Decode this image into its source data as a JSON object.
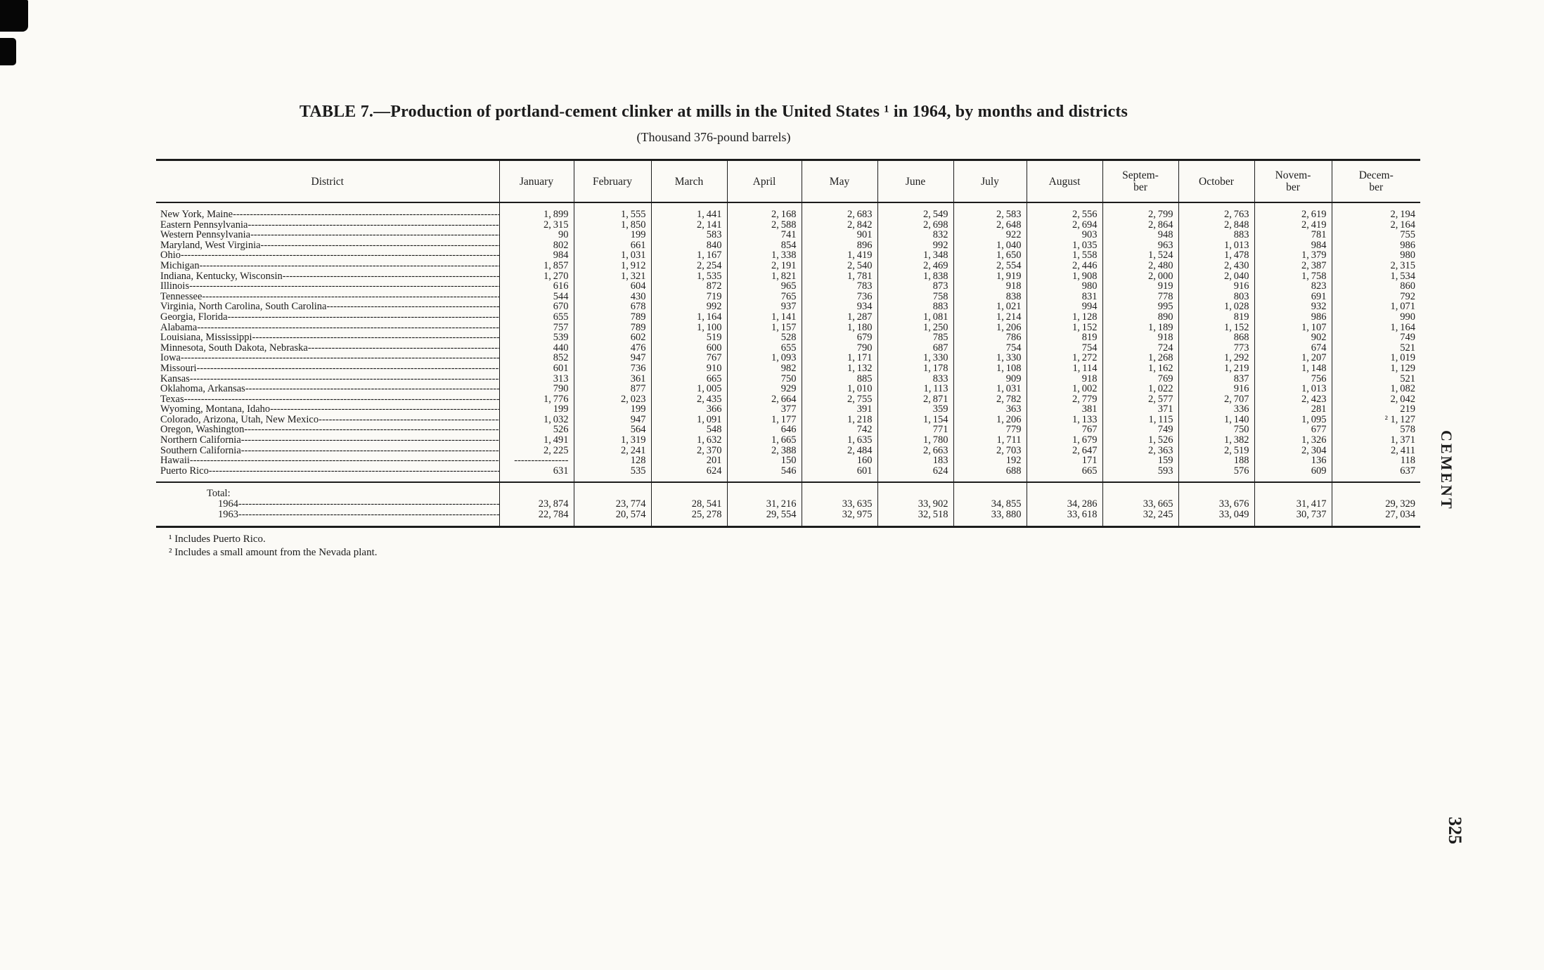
{
  "colors": {
    "paper": "#fbfaf6",
    "ink": "#1c1c1c"
  },
  "page": {
    "title": "TABLE 7.—Production of portland-cement clinker at mills in the United States ¹ in 1964, by months and districts",
    "subtitle": "(Thousand 376-pound barrels)",
    "side_label": "CEMENT",
    "page_number": "325",
    "footnotes": [
      "¹ Includes Puerto Rico.",
      "² Includes a small amount from the Nevada plant."
    ]
  },
  "table": {
    "district_header": "District",
    "month_headers": [
      "January",
      "February",
      "March",
      "April",
      "May",
      "June",
      "July",
      "August",
      "Septem-\nber",
      "October",
      "Novem-\nber",
      "Decem-\nber"
    ],
    "rows": [
      {
        "district": "New York, Maine",
        "values": [
          "1,899",
          "1,555",
          "1,441",
          "2,168",
          "2,683",
          "2,549",
          "2,583",
          "2,556",
          "2,799",
          "2,763",
          "2,619",
          "2,194"
        ]
      },
      {
        "district": "Eastern Pennsylvania",
        "values": [
          "2,315",
          "1,850",
          "2,141",
          "2,588",
          "2,842",
          "2,698",
          "2,648",
          "2,694",
          "2,864",
          "2,848",
          "2,419",
          "2,164"
        ]
      },
      {
        "district": "Western Pennsylvania",
        "values": [
          "90",
          "199",
          "583",
          "741",
          "901",
          "832",
          "922",
          "903",
          "948",
          "883",
          "781",
          "755"
        ]
      },
      {
        "district": "Maryland, West Virginia",
        "values": [
          "802",
          "661",
          "840",
          "854",
          "896",
          "992",
          "1,040",
          "1,035",
          "963",
          "1,013",
          "984",
          "986"
        ]
      },
      {
        "district": "Ohio",
        "values": [
          "984",
          "1,031",
          "1,167",
          "1,338",
          "1,419",
          "1,348",
          "1,650",
          "1,558",
          "1,524",
          "1,478",
          "1,379",
          "980"
        ]
      },
      {
        "district": "Michigan",
        "values": [
          "1,857",
          "1,912",
          "2,254",
          "2,191",
          "2,540",
          "2,469",
          "2,554",
          "2,446",
          "2,480",
          "2,430",
          "2,387",
          "2,315"
        ]
      },
      {
        "district": "Indiana, Kentucky, Wisconsin",
        "values": [
          "1,270",
          "1,321",
          "1,535",
          "1,821",
          "1,781",
          "1,838",
          "1,919",
          "1,908",
          "2,000",
          "2,040",
          "1,758",
          "1,534"
        ]
      },
      {
        "district": "Illinois",
        "values": [
          "616",
          "604",
          "872",
          "965",
          "783",
          "873",
          "918",
          "980",
          "919",
          "916",
          "823",
          "860"
        ]
      },
      {
        "district": "Tennessee",
        "values": [
          "544",
          "430",
          "719",
          "765",
          "736",
          "758",
          "838",
          "831",
          "778",
          "803",
          "691",
          "792"
        ]
      },
      {
        "district": "Virginia, North Carolina, South Carolina",
        "values": [
          "670",
          "678",
          "992",
          "937",
          "934",
          "883",
          "1,021",
          "994",
          "995",
          "1,028",
          "932",
          "1,071"
        ]
      },
      {
        "district": "Georgia, Florida",
        "values": [
          "655",
          "789",
          "1,164",
          "1,141",
          "1,287",
          "1,081",
          "1,214",
          "1,128",
          "890",
          "819",
          "986",
          "990"
        ]
      },
      {
        "district": "Alabama",
        "values": [
          "757",
          "789",
          "1,100",
          "1,157",
          "1,180",
          "1,250",
          "1,206",
          "1,152",
          "1,189",
          "1,152",
          "1,107",
          "1,164"
        ]
      },
      {
        "district": "Louisiana, Mississippi",
        "values": [
          "539",
          "602",
          "519",
          "528",
          "679",
          "785",
          "786",
          "819",
          "918",
          "868",
          "902",
          "749"
        ]
      },
      {
        "district": "Minnesota, South Dakota, Nebraska",
        "values": [
          "440",
          "476",
          "600",
          "655",
          "790",
          "687",
          "754",
          "754",
          "724",
          "773",
          "674",
          "521"
        ]
      },
      {
        "district": "Iowa",
        "values": [
          "852",
          "947",
          "767",
          "1,093",
          "1,171",
          "1,330",
          "1,330",
          "1,272",
          "1,268",
          "1,292",
          "1,207",
          "1,019"
        ]
      },
      {
        "district": "Missouri",
        "values": [
          "601",
          "736",
          "910",
          "982",
          "1,132",
          "1,178",
          "1,108",
          "1,114",
          "1,162",
          "1,219",
          "1,148",
          "1,129"
        ]
      },
      {
        "district": "Kansas",
        "values": [
          "313",
          "361",
          "665",
          "750",
          "885",
          "833",
          "909",
          "918",
          "769",
          "837",
          "756",
          "521"
        ]
      },
      {
        "district": "Oklahoma, Arkansas",
        "values": [
          "790",
          "877",
          "1,005",
          "929",
          "1,010",
          "1,113",
          "1,031",
          "1,002",
          "1,022",
          "916",
          "1,013",
          "1,082"
        ]
      },
      {
        "district": "Texas",
        "values": [
          "1,776",
          "2,023",
          "2,435",
          "2,664",
          "2,755",
          "2,871",
          "2,782",
          "2,779",
          "2,577",
          "2,707",
          "2,423",
          "2,042"
        ]
      },
      {
        "district": "Wyoming, Montana, Idaho",
        "values": [
          "199",
          "199",
          "366",
          "377",
          "391",
          "359",
          "363",
          "381",
          "371",
          "336",
          "281",
          "219"
        ]
      },
      {
        "district": "Colorado, Arizona, Utah, New Mexico",
        "values": [
          "1,032",
          "947",
          "1,091",
          "1,177",
          "1,218",
          "1,154",
          "1,206",
          "1,133",
          "1,115",
          "1,140",
          "1,095",
          "² 1,127"
        ]
      },
      {
        "district": "Oregon, Washington",
        "values": [
          "526",
          "564",
          "548",
          "646",
          "742",
          "771",
          "779",
          "767",
          "749",
          "750",
          "677",
          "578"
        ]
      },
      {
        "district": "Northern California",
        "values": [
          "1,491",
          "1,319",
          "1,632",
          "1,665",
          "1,635",
          "1,780",
          "1,711",
          "1,679",
          "1,526",
          "1,382",
          "1,326",
          "1,371"
        ]
      },
      {
        "district": "Southern California",
        "values": [
          "2,225",
          "2,241",
          "2,370",
          "2,388",
          "2,484",
          "2,663",
          "2,703",
          "2,647",
          "2,363",
          "2,519",
          "2,304",
          "2,411"
        ]
      },
      {
        "district": "Hawaii",
        "values": [
          "----------------",
          "128",
          "201",
          "150",
          "160",
          "183",
          "192",
          "171",
          "159",
          "188",
          "136",
          "118"
        ]
      },
      {
        "district": "Puerto Rico",
        "values": [
          "631",
          "535",
          "624",
          "546",
          "601",
          "624",
          "688",
          "665",
          "593",
          "576",
          "609",
          "637"
        ]
      }
    ],
    "total_label": "Total:",
    "total_rows": [
      {
        "year": "1964",
        "values": [
          "23,874",
          "23,774",
          "28,541",
          "31,216",
          "33,635",
          "33,902",
          "34,855",
          "34,286",
          "33,665",
          "33,676",
          "31,417",
          "29,329"
        ]
      },
      {
        "year": "1963",
        "values": [
          "22,784",
          "20,574",
          "25,278",
          "29,554",
          "32,975",
          "32,518",
          "33,880",
          "33,618",
          "32,245",
          "33,049",
          "30,737",
          "27,034"
        ]
      }
    ]
  }
}
